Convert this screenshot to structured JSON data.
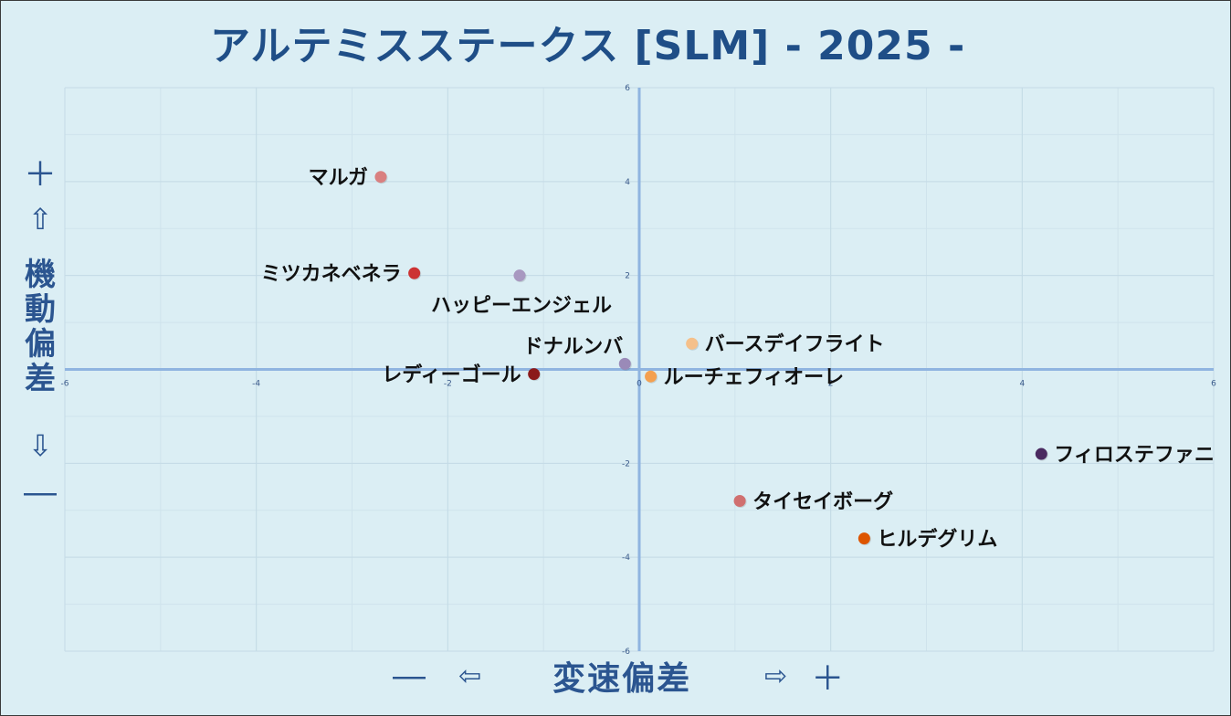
{
  "title": "アルテミスステークス [SLM]  - 2025 -",
  "y_axis": {
    "plus": "＋",
    "up_arrow": "⇧",
    "label_chars": [
      "機",
      "動",
      "偏",
      "差"
    ],
    "down_arrow": "⇩",
    "minus": "―"
  },
  "x_axis": {
    "minus": "―",
    "left_arrow": "⇦",
    "label": "変速偏差",
    "right_arrow": "⇨",
    "plus": "＋"
  },
  "chart_data": {
    "type": "scatter",
    "title": "アルテミスステークス [SLM]  - 2025 -",
    "xlabel": "変速偏差",
    "ylabel": "機動偏差",
    "xlim": [
      -6,
      6
    ],
    "ylim": [
      -6,
      6
    ],
    "x_ticks": [
      -6,
      -4,
      -2,
      0,
      2,
      4,
      6
    ],
    "y_ticks": [
      -6,
      -4,
      -2,
      0,
      2,
      4,
      6
    ],
    "x_tick_labels": [
      "-6",
      "-4",
      "-2",
      "0",
      "2",
      "4",
      "6"
    ],
    "y_tick_labels": [
      "-6",
      "-4",
      "-2",
      "0",
      "2",
      "4",
      "6"
    ],
    "grid": true,
    "points": [
      {
        "name": "マルガ",
        "x": -2.7,
        "y": 4.1,
        "color": "#d98080",
        "label_side": "left"
      },
      {
        "name": "ミツカネベネラ",
        "x": -2.35,
        "y": 2.05,
        "color": "#cc3333",
        "label_side": "left"
      },
      {
        "name": "ハッピーエンジェル",
        "x": -1.25,
        "y": 2.0,
        "color": "#a898c0",
        "label_side": "below"
      },
      {
        "name": "ドナルンバ",
        "x": -0.15,
        "y": 0.12,
        "color": "#9a8ab8",
        "label_side": "left-up"
      },
      {
        "name": "レディーゴール",
        "x": -1.1,
        "y": -0.1,
        "color": "#8b1a1a",
        "label_side": "left"
      },
      {
        "name": "バースデイフライト",
        "x": 0.55,
        "y": 0.55,
        "color": "#f5c08a",
        "label_side": "right"
      },
      {
        "name": "ルーチェフィオーレ",
        "x": 0.12,
        "y": -0.15,
        "color": "#f4a050",
        "label_side": "right"
      },
      {
        "name": "フィロステファニ",
        "x": 4.2,
        "y": -1.8,
        "color": "#4a2a60",
        "label_side": "right"
      },
      {
        "name": "タイセイボーグ",
        "x": 1.05,
        "y": -2.8,
        "color": "#d07070",
        "label_side": "right"
      },
      {
        "name": "ヒルデグリム",
        "x": 2.35,
        "y": -3.6,
        "color": "#dd5500",
        "label_side": "right"
      }
    ]
  }
}
